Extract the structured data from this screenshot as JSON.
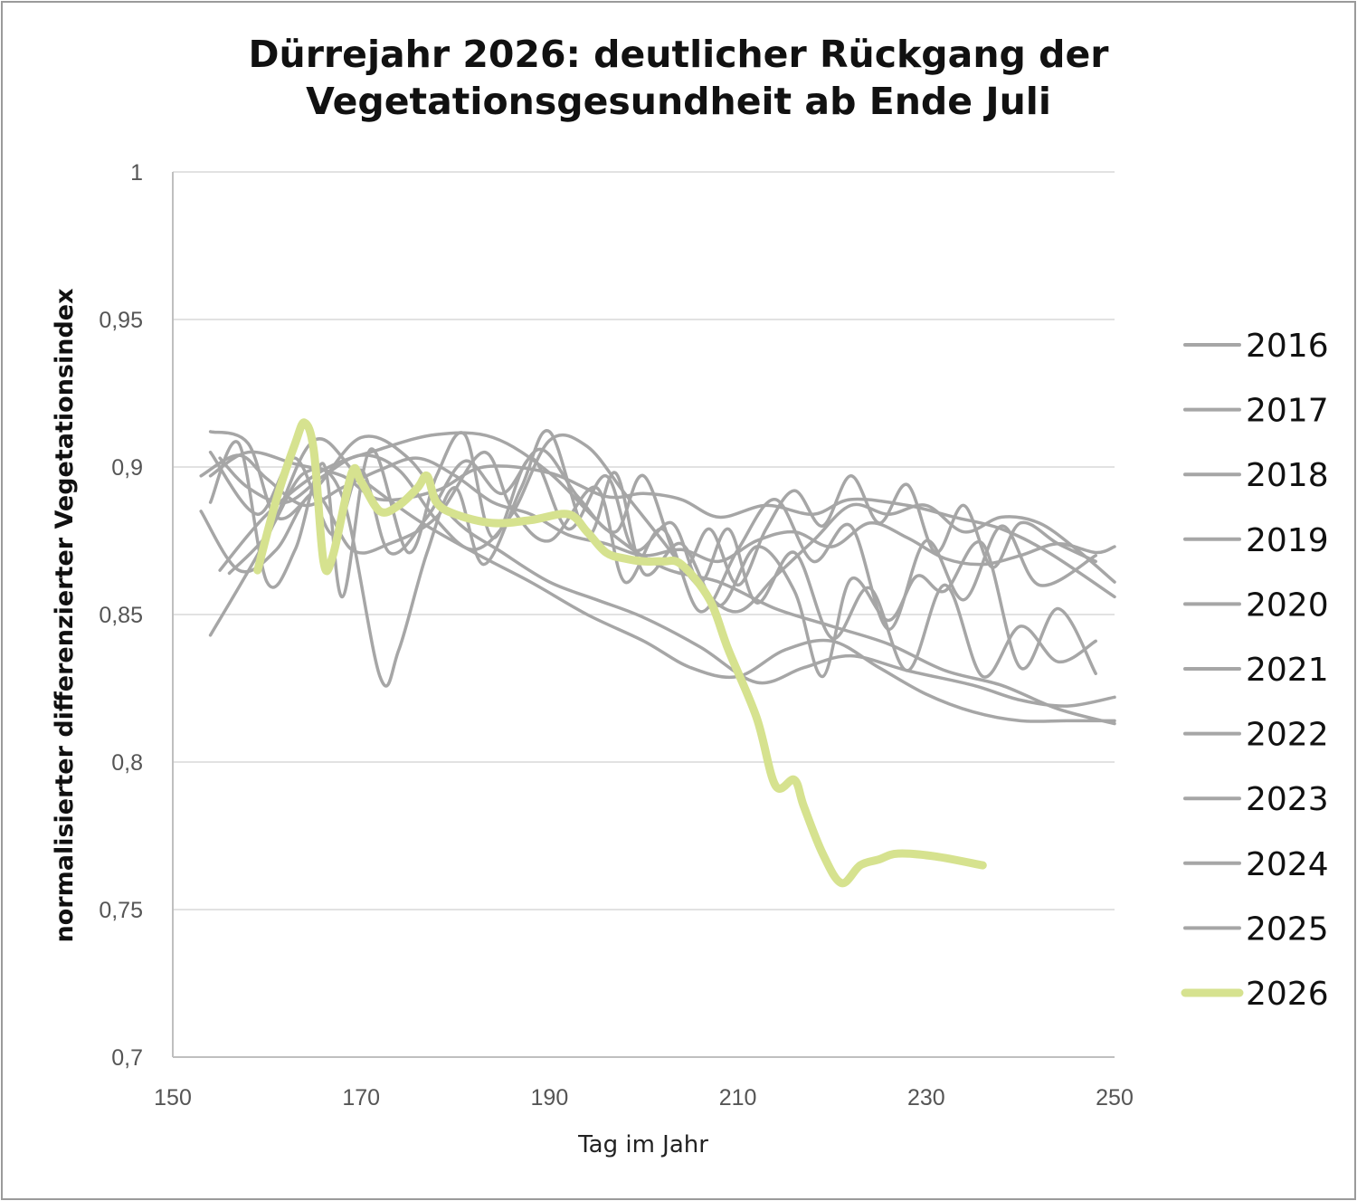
{
  "chart_data": {
    "type": "line",
    "title": "Dürrejahr 2026: deutlicher Rückgang der Vegetationsgesundheit ab Ende Juli",
    "title_lines": [
      "Dürrejahr 2026: deutlicher Rückgang der",
      "Vegetationsgesundheit ab Ende Juli"
    ],
    "xlabel": "Tag im Jahr",
    "ylabel": "normalisierter differenzierter Vegetationsindex",
    "xlim": [
      150,
      250
    ],
    "ylim": [
      0.7,
      1
    ],
    "xticks": [
      150,
      170,
      190,
      210,
      230,
      250
    ],
    "yticks": [
      0.7,
      0.75,
      0.8,
      0.85,
      0.9,
      0.95,
      1
    ],
    "xtick_labels": [
      "150",
      "170",
      "190",
      "210",
      "230",
      "250"
    ],
    "ytick_labels": [
      "0,7",
      "0,75",
      "0,8",
      "0,85",
      "0,9",
      "0,95",
      "1"
    ],
    "grid": "horizontal",
    "legend_position": "right",
    "colors": {
      "historic": "#a6a6a6",
      "highlight": "#d6e28f",
      "grid": "#d9d9d9",
      "axis": "#bfbfbf"
    },
    "series": [
      {
        "name": "2016",
        "x": [
          154,
          158,
          163,
          168,
          172,
          178,
          183,
          190,
          196,
          200,
          204,
          208,
          213,
          218,
          222,
          228,
          233,
          238,
          243,
          250
        ],
        "y": [
          0.897,
          0.905,
          0.901,
          0.897,
          0.889,
          0.892,
          0.9,
          0.898,
          0.89,
          0.891,
          0.889,
          0.883,
          0.887,
          0.884,
          0.889,
          0.887,
          0.883,
          0.879,
          0.871,
          0.856
        ]
      },
      {
        "name": "2017",
        "x": [
          153,
          157,
          161,
          165,
          169,
          173,
          178,
          183,
          186,
          190,
          195,
          198,
          202,
          206,
          210,
          214,
          218,
          222,
          226,
          230,
          234,
          238,
          242,
          248
        ],
        "y": [
          0.885,
          0.865,
          0.872,
          0.891,
          0.872,
          0.874,
          0.883,
          0.905,
          0.886,
          0.875,
          0.893,
          0.861,
          0.879,
          0.851,
          0.872,
          0.889,
          0.868,
          0.88,
          0.845,
          0.875,
          0.855,
          0.88,
          0.86,
          0.87
        ]
      },
      {
        "name": "2018",
        "x": [
          154,
          160,
          165,
          170,
          176,
          182,
          188,
          194,
          200,
          205,
          210,
          215,
          220,
          225,
          230,
          235,
          240,
          245,
          250
        ],
        "y": [
          0.843,
          0.876,
          0.909,
          0.896,
          0.882,
          0.871,
          0.861,
          0.85,
          0.841,
          0.832,
          0.829,
          0.838,
          0.841,
          0.832,
          0.823,
          0.817,
          0.814,
          0.814,
          0.814
        ]
      },
      {
        "name": "2019",
        "x": [
          154,
          158,
          161,
          165,
          170,
          175,
          180,
          185,
          190,
          195,
          200,
          206,
          212,
          217,
          222,
          228,
          235,
          240,
          245,
          250
        ],
        "y": [
          0.912,
          0.908,
          0.883,
          0.892,
          0.91,
          0.903,
          0.882,
          0.871,
          0.861,
          0.855,
          0.849,
          0.839,
          0.827,
          0.832,
          0.836,
          0.831,
          0.826,
          0.821,
          0.819,
          0.822
        ]
      },
      {
        "name": "2020",
        "x": [
          154,
          157,
          160,
          163,
          166,
          168,
          171,
          175,
          178,
          181,
          184,
          188,
          192,
          196,
          199,
          203,
          206,
          209,
          212,
          216,
          220,
          224,
          228,
          232,
          236,
          240,
          244,
          248
        ],
        "y": [
          0.888,
          0.908,
          0.861,
          0.872,
          0.901,
          0.856,
          0.906,
          0.871,
          0.897,
          0.911,
          0.876,
          0.903,
          0.879,
          0.897,
          0.872,
          0.881,
          0.861,
          0.879,
          0.854,
          0.871,
          0.842,
          0.859,
          0.831,
          0.86,
          0.829,
          0.846,
          0.834,
          0.841
        ]
      },
      {
        "name": "2021",
        "x": [
          156,
          160,
          164,
          168,
          172,
          174,
          177,
          180,
          183,
          187,
          190,
          194,
          197,
          200,
          204,
          208,
          212,
          216,
          219,
          222,
          226,
          229,
          232,
          236,
          240,
          244,
          248
        ],
        "y": [
          0.864,
          0.877,
          0.898,
          0.89,
          0.829,
          0.838,
          0.871,
          0.893,
          0.867,
          0.893,
          0.912,
          0.877,
          0.898,
          0.864,
          0.874,
          0.853,
          0.873,
          0.858,
          0.829,
          0.862,
          0.848,
          0.863,
          0.858,
          0.874,
          0.832,
          0.852,
          0.83
        ]
      },
      {
        "name": "2022",
        "x": [
          155,
          160,
          166,
          172,
          178,
          184,
          190,
          196,
          202,
          208,
          214,
          220,
          226,
          232,
          238,
          244,
          250
        ],
        "y": [
          0.865,
          0.884,
          0.899,
          0.906,
          0.911,
          0.91,
          0.898,
          0.879,
          0.866,
          0.861,
          0.852,
          0.846,
          0.84,
          0.831,
          0.826,
          0.818,
          0.813
        ]
      },
      {
        "name": "2023",
        "x": [
          154,
          159,
          163,
          167,
          170,
          173,
          177,
          181,
          185,
          189,
          193,
          197,
          200,
          204,
          207,
          210,
          213,
          216,
          219,
          222,
          225,
          228,
          231,
          234,
          237,
          240,
          244,
          248
        ],
        "y": [
          0.905,
          0.884,
          0.903,
          0.877,
          0.899,
          0.871,
          0.883,
          0.902,
          0.891,
          0.906,
          0.89,
          0.878,
          0.897,
          0.866,
          0.879,
          0.86,
          0.879,
          0.892,
          0.88,
          0.897,
          0.881,
          0.894,
          0.871,
          0.887,
          0.866,
          0.881,
          0.874,
          0.868
        ]
      },
      {
        "name": "2024",
        "x": [
          153,
          157,
          160,
          164,
          168,
          172,
          176,
          180,
          184,
          188,
          192,
          196,
          200,
          204,
          208,
          212,
          216,
          220,
          224,
          228,
          232,
          236,
          240,
          244,
          248,
          250
        ],
        "y": [
          0.897,
          0.904,
          0.896,
          0.887,
          0.893,
          0.899,
          0.903,
          0.897,
          0.888,
          0.884,
          0.877,
          0.874,
          0.87,
          0.872,
          0.868,
          0.875,
          0.878,
          0.873,
          0.881,
          0.876,
          0.869,
          0.867,
          0.87,
          0.874,
          0.871,
          0.873
        ]
      },
      {
        "name": "2025",
        "x": [
          155,
          158,
          162,
          166,
          170,
          174,
          178,
          182,
          186,
          190,
          194,
          198,
          202,
          206,
          210,
          214,
          218,
          222,
          226,
          230,
          234,
          238,
          242,
          246,
          250
        ],
        "y": [
          0.903,
          0.893,
          0.888,
          0.897,
          0.904,
          0.899,
          0.882,
          0.872,
          0.884,
          0.909,
          0.907,
          0.891,
          0.875,
          0.859,
          0.851,
          0.863,
          0.875,
          0.887,
          0.884,
          0.887,
          0.878,
          0.883,
          0.881,
          0.872,
          0.861
        ]
      },
      {
        "name": "2026",
        "highlight": true,
        "x": [
          159,
          161,
          163,
          164,
          165,
          166,
          167,
          169,
          170,
          172,
          174,
          176,
          177,
          178,
          180,
          184,
          188,
          192,
          194,
          196,
          198,
          200,
          202,
          204,
          207,
          209,
          212,
          214,
          216,
          217,
          219,
          221,
          223,
          225,
          227,
          231,
          236
        ],
        "y": [
          0.865,
          0.889,
          0.908,
          0.915,
          0.905,
          0.868,
          0.87,
          0.898,
          0.895,
          0.885,
          0.887,
          0.893,
          0.897,
          0.888,
          0.884,
          0.881,
          0.882,
          0.884,
          0.878,
          0.871,
          0.869,
          0.868,
          0.868,
          0.867,
          0.855,
          0.838,
          0.815,
          0.792,
          0.794,
          0.785,
          0.769,
          0.759,
          0.765,
          0.767,
          0.769,
          0.768,
          0.765
        ]
      }
    ]
  }
}
